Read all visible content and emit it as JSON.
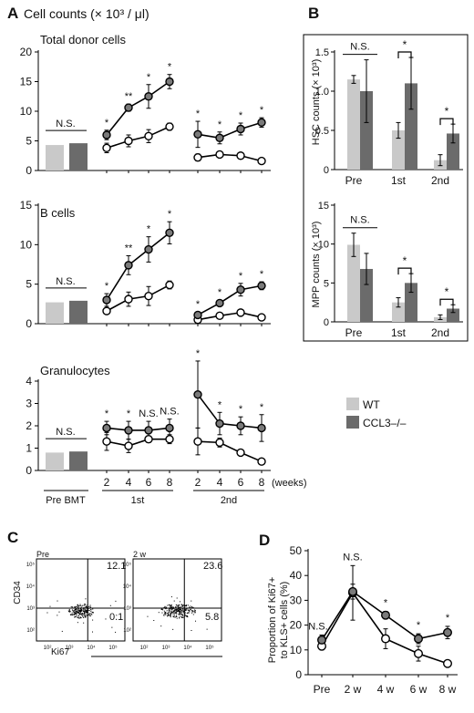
{
  "panels": {
    "A": "A",
    "B": "B",
    "C": "C",
    "D": "D"
  },
  "legend": {
    "items": [
      {
        "label": "WT",
        "color": "#c9c9c9"
      },
      {
        "label": "CCL3–/–",
        "color": "#6b6b6b"
      }
    ]
  },
  "colors": {
    "wt_bar": "#c9c9c9",
    "ko_bar": "#6b6b6b",
    "wt_marker": "#ffffff",
    "ko_marker": "#7a7a7a"
  },
  "chart_data": [
    {
      "id": "A_total",
      "type": "line",
      "panel": "A",
      "title": "Cell counts (× 10³ / μl)",
      "subtitle": "Total donor cells",
      "ylim": [
        0,
        20
      ],
      "yticks": [
        0,
        5,
        10,
        15,
        20
      ],
      "pre_bmt": {
        "WT": 4.3,
        "CCL3–/–": 4.6,
        "annotation": "N.S."
      },
      "first": {
        "x": [
          2,
          4,
          6,
          8
        ],
        "series": [
          {
            "name": "WT",
            "values": [
              3.8,
              5.0,
              5.8,
              7.4
            ],
            "errors": [
              0.8,
              1.0,
              1.1,
              0.6
            ]
          },
          {
            "name": "CCL3–/–",
            "values": [
              6.0,
              10.6,
              12.5,
              15.0
            ],
            "errors": [
              0.8,
              0.6,
              2.0,
              1.2
            ]
          }
        ],
        "annotations": [
          "*",
          "**",
          "*",
          "*"
        ]
      },
      "second": {
        "x": [
          2,
          4,
          6,
          8
        ],
        "series": [
          {
            "name": "WT",
            "values": [
              2.2,
              2.7,
              2.5,
              1.6
            ],
            "errors": [
              0.6,
              0.3,
              0.3,
              0.2
            ]
          },
          {
            "name": "CCL3–/–",
            "values": [
              6.1,
              5.5,
              7.0,
              8.1
            ],
            "errors": [
              2.2,
              1.0,
              1.0,
              0.8
            ]
          }
        ],
        "annotations": [
          "*",
          "*",
          "*",
          "*"
        ]
      }
    },
    {
      "id": "A_bcells",
      "type": "line",
      "panel": "A",
      "subtitle": "B cells",
      "ylim": [
        0,
        15
      ],
      "yticks": [
        0,
        5,
        10,
        15
      ],
      "pre_bmt": {
        "WT": 2.7,
        "CCL3–/–": 2.9,
        "annotation": "N.S."
      },
      "first": {
        "x": [
          2,
          4,
          6,
          8
        ],
        "series": [
          {
            "name": "WT",
            "values": [
              1.6,
              3.1,
              3.5,
              4.9
            ],
            "errors": [
              0.3,
              0.9,
              1.2,
              0.5
            ]
          },
          {
            "name": "CCL3–/–",
            "values": [
              3.0,
              7.4,
              9.4,
              11.5
            ],
            "errors": [
              0.8,
              1.2,
              1.6,
              1.4
            ]
          }
        ],
        "annotations": [
          "*",
          "**",
          "*",
          "*"
        ]
      },
      "second": {
        "x": [
          2,
          4,
          6,
          8
        ],
        "series": [
          {
            "name": "WT",
            "values": [
              0.5,
              1.0,
              1.4,
              0.8
            ],
            "errors": [
              0.1,
              0.1,
              0.2,
              0.2
            ]
          },
          {
            "name": "CCL3–/–",
            "values": [
              1.1,
              2.6,
              4.3,
              4.8
            ],
            "errors": [
              0.4,
              0.4,
              0.8,
              0.5
            ]
          }
        ],
        "annotations": [
          "*",
          "*",
          "*",
          "*"
        ]
      }
    },
    {
      "id": "A_granulocytes",
      "type": "line",
      "panel": "A",
      "subtitle": "Granulocytes",
      "ylim": [
        0,
        4
      ],
      "yticks": [
        0,
        1,
        2,
        3,
        4
      ],
      "pre_bmt": {
        "WT": 0.8,
        "CCL3–/–": 0.85,
        "annotation": "N.S."
      },
      "first": {
        "x": [
          2,
          4,
          6,
          8
        ],
        "series": [
          {
            "name": "WT",
            "values": [
              1.3,
              1.1,
              1.4,
              1.4
            ],
            "errors": [
              0.4,
              0.3,
              0.15,
              0.2
            ]
          },
          {
            "name": "CCL3–/–",
            "values": [
              1.9,
              1.8,
              1.8,
              1.9
            ],
            "errors": [
              0.3,
              0.4,
              0.4,
              0.4
            ]
          }
        ],
        "annotations": [
          "*",
          "*",
          "N.S.",
          "N.S."
        ]
      },
      "second": {
        "x": [
          2,
          4,
          6,
          8
        ],
        "series": [
          {
            "name": "WT",
            "values": [
              1.3,
              1.25,
              0.8,
              0.4
            ],
            "errors": [
              0.6,
              0.2,
              0.1,
              0.1
            ]
          },
          {
            "name": "CCL3–/–",
            "values": [
              3.4,
              2.1,
              2.0,
              1.9
            ],
            "errors": [
              1.5,
              0.5,
              0.4,
              0.6
            ]
          }
        ],
        "annotations": [
          "*",
          "*",
          "*",
          "*"
        ]
      },
      "xtick_labels": [
        "2",
        "4",
        "6",
        "8"
      ],
      "xunit": "(weeks)",
      "group_labels": [
        "Pre BMT",
        "1st",
        "2nd"
      ]
    },
    {
      "id": "B_hsc",
      "type": "bar",
      "panel": "B",
      "ylabel": "HSC counts (× 10³)",
      "categories": [
        "Pre",
        "1st",
        "2nd"
      ],
      "ylim": [
        0,
        1.5
      ],
      "yticks": [
        0,
        0.5,
        1.0,
        1.5
      ],
      "ytick_labels": [
        "0",
        "0.5",
        "1.0",
        "1.5"
      ],
      "series": [
        {
          "name": "WT",
          "values": [
            1.15,
            0.5,
            0.12
          ],
          "errors": [
            0.05,
            0.1,
            0.07
          ]
        },
        {
          "name": "CCL3–/–",
          "values": [
            1.0,
            1.1,
            0.46
          ],
          "errors": [
            0.4,
            0.33,
            0.12
          ]
        }
      ],
      "annotations": [
        "N.S.",
        "*",
        "*"
      ]
    },
    {
      "id": "B_mpp",
      "type": "bar",
      "panel": "B",
      "ylabel": "MPP counts (× 10³)",
      "categories": [
        "Pre",
        "1st",
        "2nd"
      ],
      "ylim": [
        0,
        15
      ],
      "yticks": [
        0,
        5,
        10,
        15
      ],
      "series": [
        {
          "name": "WT",
          "values": [
            9.9,
            2.5,
            0.6
          ],
          "errors": [
            1.5,
            0.6,
            0.3
          ]
        },
        {
          "name": "CCL3–/–",
          "values": [
            6.8,
            5.0,
            1.7
          ],
          "errors": [
            2.0,
            1.2,
            0.5
          ]
        }
      ],
      "annotations": [
        "N.S.",
        "*",
        "*"
      ]
    },
    {
      "id": "C_flow",
      "type": "scatter",
      "panel": "C",
      "xlabel": "Ki67",
      "ylabel": "CD34",
      "tick_labels": [
        "10²",
        "10³",
        "10⁴",
        "10⁵"
      ],
      "plots": [
        {
          "title": "Pre",
          "upper_right": "12.1",
          "lower_right": "0.1"
        },
        {
          "title": "2 w",
          "upper_right": "23.6",
          "lower_right": "5.8"
        }
      ]
    },
    {
      "id": "D_ki67",
      "type": "line",
      "panel": "D",
      "ylabel": "Proportion of Ki67+ to KLS+ cells (%)",
      "categories": [
        "Pre",
        "2 w",
        "4 w",
        "6 w",
        "8 w"
      ],
      "ylim": [
        0,
        50
      ],
      "yticks": [
        0,
        10,
        20,
        30,
        40,
        50
      ],
      "series": [
        {
          "name": "WT",
          "values": [
            11.5,
            33,
            14.5,
            8.5,
            4.5
          ],
          "errors": [
            1.5,
            11,
            4,
            3,
            1
          ]
        },
        {
          "name": "CCL3–/–",
          "values": [
            14,
            33.5,
            24,
            14.5,
            17
          ],
          "errors": [
            2,
            3,
            1.5,
            2,
            2.5
          ]
        }
      ],
      "annotations": [
        "N.S.",
        "N.S.",
        "*",
        "*",
        "*"
      ]
    }
  ]
}
